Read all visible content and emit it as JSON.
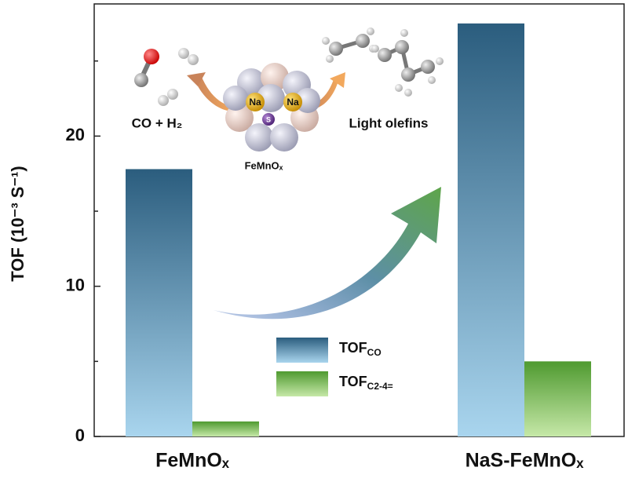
{
  "chart_data": {
    "type": "bar",
    "y_label": "TOF (10⁻³ S⁻¹)",
    "categories": [
      "FeMnOₓ",
      "NaS-FeMnOₓ"
    ],
    "series": [
      {
        "name": "TOF",
        "name_sub": "CO",
        "color": "#2b5d7e",
        "gradient": [
          "#2b5d7e",
          "#a9d5ee"
        ],
        "values": [
          17.8,
          27.5
        ]
      },
      {
        "name": "TOF",
        "name_sub": "C2-4=",
        "color": "#4f9a30",
        "gradient": [
          "#4f9a30",
          "#c6e8a8"
        ],
        "values": [
          1.0,
          5.0
        ]
      }
    ],
    "ylim": [
      0,
      28.8
    ],
    "yticks": [
      0,
      10,
      20
    ],
    "minor_yticks": [
      5,
      15,
      25
    ],
    "annotations": {
      "reactants": "CO + H₂",
      "catalyst": "FeMnOₓ",
      "products": "Light olefins",
      "na_left": "Na",
      "na_right": "Na",
      "sulfur": "S"
    }
  }
}
